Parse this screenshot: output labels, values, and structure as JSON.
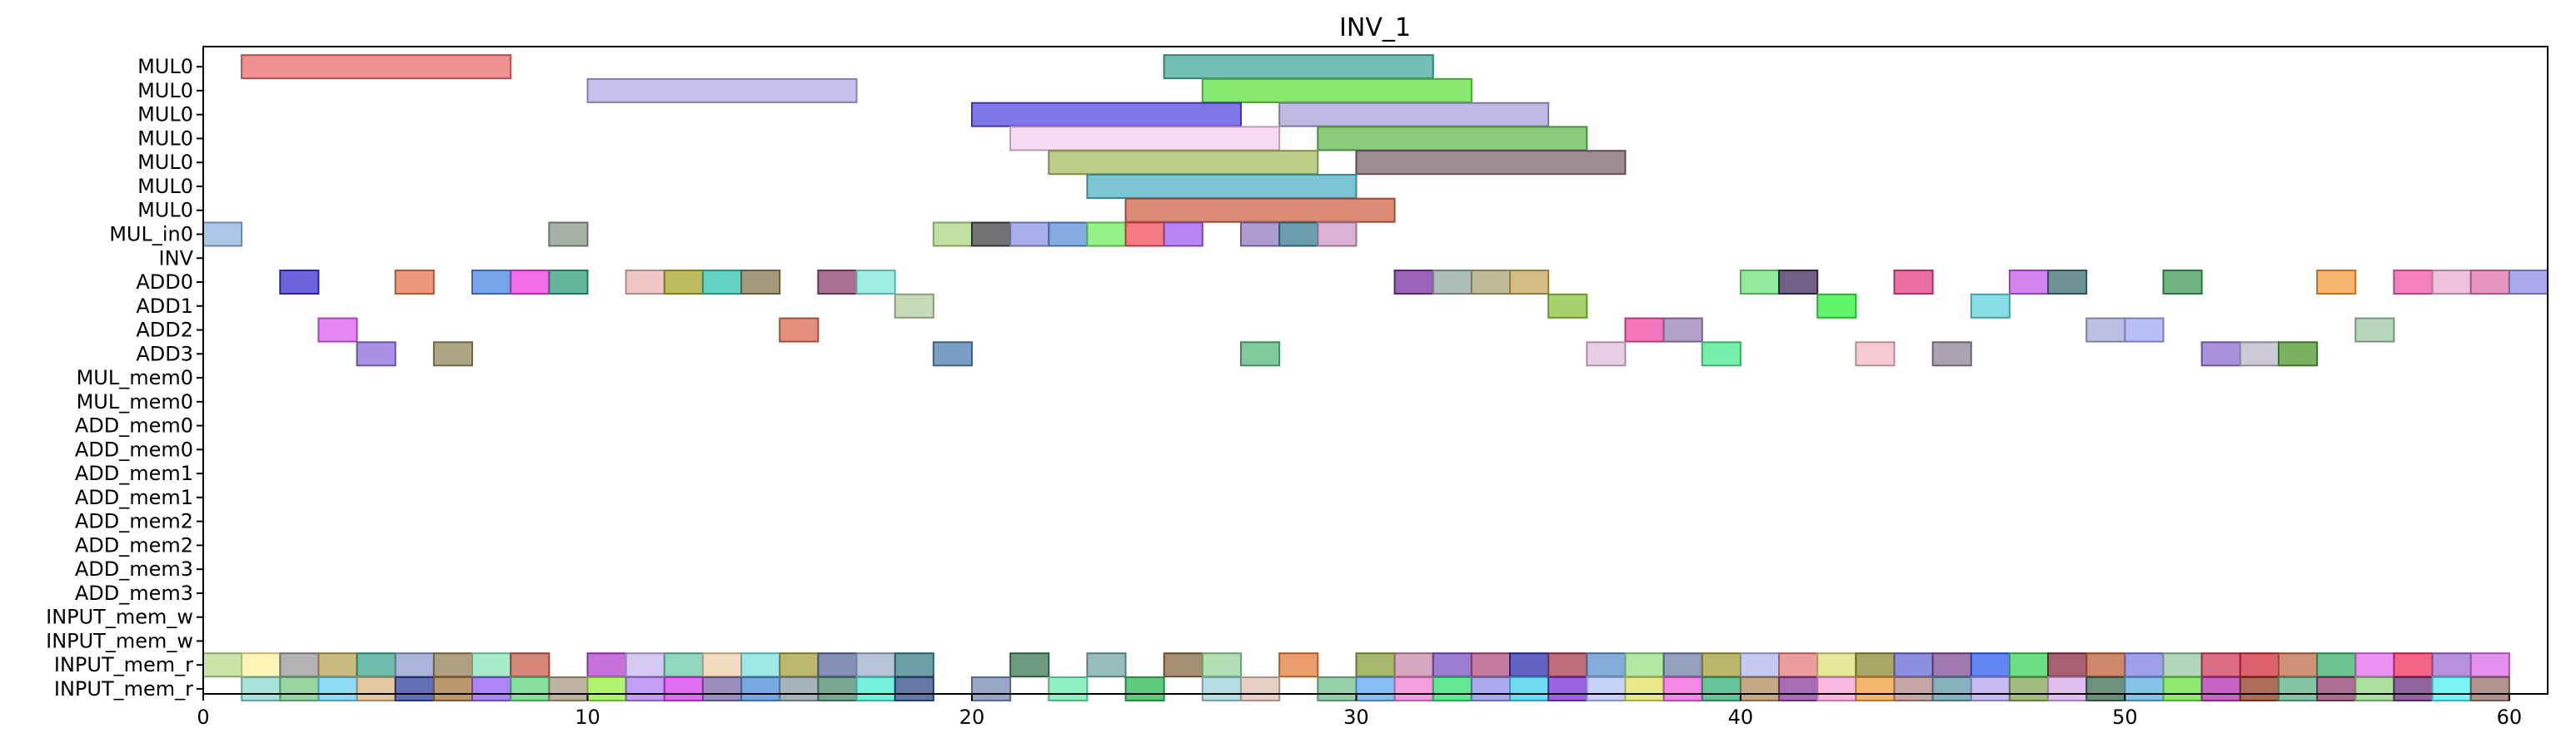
{
  "chart_data": {
    "type": "gantt",
    "title": "INV_1",
    "xlabel": "",
    "ylabel": "",
    "xlim": [
      0,
      61
    ],
    "xticks": [
      0,
      10,
      20,
      30,
      40,
      50,
      60
    ],
    "grid": false,
    "rows": [
      "MUL0",
      "MUL0",
      "MUL0",
      "MUL0",
      "MUL0",
      "MUL0",
      "MUL0",
      "MUL_in0",
      "INV",
      "ADD0",
      "ADD1",
      "ADD2",
      "ADD3",
      "MUL_mem0",
      "MUL_mem0",
      "ADD_mem0",
      "ADD_mem0",
      "ADD_mem1",
      "ADD_mem1",
      "ADD_mem2",
      "ADD_mem2",
      "ADD_mem3",
      "ADD_mem3",
      "INPUT_mem_w",
      "INPUT_mem_w",
      "INPUT_mem_r",
      "INPUT_mem_r"
    ],
    "tasks": [
      {
        "row": 0,
        "start": 1,
        "end": 8,
        "color": "#ec6b6b"
      },
      {
        "row": 0,
        "start": 25,
        "end": 32,
        "color": "#45a99a"
      },
      {
        "row": 1,
        "start": 10,
        "end": 17,
        "color": "#b7a9e6"
      },
      {
        "row": 1,
        "start": 26,
        "end": 33,
        "color": "#5fe240"
      },
      {
        "row": 2,
        "start": 20,
        "end": 27,
        "color": "#5447de"
      },
      {
        "row": 2,
        "start": 28,
        "end": 35,
        "color": "#a7a2d8"
      },
      {
        "row": 3,
        "start": 21,
        "end": 28,
        "color": "#f6cfee"
      },
      {
        "row": 3,
        "start": 29,
        "end": 36,
        "color": "#63bb52"
      },
      {
        "row": 4,
        "start": 22,
        "end": 29,
        "color": "#a8be62"
      },
      {
        "row": 4,
        "start": 30,
        "end": 37,
        "color": "#7f6470"
      },
      {
        "row": 5,
        "start": 23,
        "end": 30,
        "color": "#4fb2c7"
      },
      {
        "row": 6,
        "start": 24,
        "end": 31,
        "color": "#cf6348"
      },
      {
        "row": 7,
        "start": 0,
        "end": 1,
        "color": "#92b3e2"
      },
      {
        "row": 7,
        "start": 9,
        "end": 10,
        "color": "#8b9a8b"
      },
      {
        "row": 7,
        "start": 19,
        "end": 20,
        "color": "#acd784"
      },
      {
        "row": 7,
        "start": 20,
        "end": 21,
        "color": "#414141"
      },
      {
        "row": 7,
        "start": 21,
        "end": 22,
        "color": "#8e93e6"
      },
      {
        "row": 7,
        "start": 22,
        "end": 23,
        "color": "#5c8fd8"
      },
      {
        "row": 7,
        "start": 23,
        "end": 24,
        "color": "#6fef5e"
      },
      {
        "row": 7,
        "start": 24,
        "end": 25,
        "color": "#f34f5a"
      },
      {
        "row": 7,
        "start": 25,
        "end": 26,
        "color": "#a05df0"
      },
      {
        "row": 7,
        "start": 27,
        "end": 28,
        "color": "#9279c2"
      },
      {
        "row": 7,
        "start": 28,
        "end": 29,
        "color": "#3a7f94"
      },
      {
        "row": 7,
        "start": 29,
        "end": 30,
        "color": "#cf97c6"
      },
      {
        "row": 9,
        "start": 2,
        "end": 3,
        "color": "#3a2dd0"
      },
      {
        "row": 9,
        "start": 5,
        "end": 6,
        "color": "#e47552"
      },
      {
        "row": 9,
        "start": 7,
        "end": 8,
        "color": "#4a86e0"
      },
      {
        "row": 9,
        "start": 8,
        "end": 9,
        "color": "#f03ce0"
      },
      {
        "row": 9,
        "start": 9,
        "end": 10,
        "color": "#2f9e7a"
      },
      {
        "row": 9,
        "start": 11,
        "end": 12,
        "color": "#eab4b4"
      },
      {
        "row": 9,
        "start": 12,
        "end": 13,
        "color": "#a9a52a"
      },
      {
        "row": 9,
        "start": 13,
        "end": 14,
        "color": "#2fc2b0"
      },
      {
        "row": 9,
        "start": 14,
        "end": 15,
        "color": "#857a52"
      },
      {
        "row": 9,
        "start": 16,
        "end": 17,
        "color": "#8c3f6f"
      },
      {
        "row": 9,
        "start": 17,
        "end": 18,
        "color": "#7ee8dd"
      },
      {
        "row": 9,
        "start": 31,
        "end": 32,
        "color": "#7a2ea0"
      },
      {
        "row": 9,
        "start": 32,
        "end": 33,
        "color": "#93a8a4"
      },
      {
        "row": 9,
        "start": 33,
        "end": 34,
        "color": "#a7a673"
      },
      {
        "row": 9,
        "start": 34,
        "end": 35,
        "color": "#c6a55c"
      },
      {
        "row": 9,
        "start": 40,
        "end": 41,
        "color": "#6ee07a"
      },
      {
        "row": 9,
        "start": 41,
        "end": 42,
        "color": "#3f2d5c"
      },
      {
        "row": 9,
        "start": 44,
        "end": 45,
        "color": "#e33f82"
      },
      {
        "row": 9,
        "start": 47,
        "end": 48,
        "color": "#c45bea"
      },
      {
        "row": 9,
        "start": 48,
        "end": 49,
        "color": "#3f6f70"
      },
      {
        "row": 9,
        "start": 51,
        "end": 52,
        "color": "#3f9a55"
      },
      {
        "row": 9,
        "start": 55,
        "end": 56,
        "color": "#f49a3c"
      },
      {
        "row": 9,
        "start": 57,
        "end": 58,
        "color": "#f058a8"
      },
      {
        "row": 9,
        "start": 58,
        "end": 59,
        "color": "#e8aed0"
      },
      {
        "row": 9,
        "start": 59,
        "end": 60,
        "color": "#df72a8"
      },
      {
        "row": 9,
        "start": 60,
        "end": 61,
        "color": "#8e8fe6"
      },
      {
        "row": 10,
        "start": 18,
        "end": 19,
        "color": "#b6cfa0"
      },
      {
        "row": 10,
        "start": 35,
        "end": 36,
        "color": "#8ac43f"
      },
      {
        "row": 10,
        "start": 42,
        "end": 43,
        "color": "#2ef03a"
      },
      {
        "row": 10,
        "start": 46,
        "end": 47,
        "color": "#5fd3df"
      },
      {
        "row": 11,
        "start": 3,
        "end": 4,
        "color": "#e05cf0"
      },
      {
        "row": 11,
        "start": 15,
        "end": 16,
        "color": "#d96950"
      },
      {
        "row": 11,
        "start": 37,
        "end": 38,
        "color": "#f04aa8"
      },
      {
        "row": 11,
        "start": 38,
        "end": 39,
        "color": "#9a82b8"
      },
      {
        "row": 11,
        "start": 49,
        "end": 50,
        "color": "#a8a9dc"
      },
      {
        "row": 11,
        "start": 50,
        "end": 51,
        "color": "#a3a8f5"
      },
      {
        "row": 11,
        "start": 56,
        "end": 57,
        "color": "#9cc8a0"
      },
      {
        "row": 12,
        "start": 4,
        "end": 5,
        "color": "#8c6edc"
      },
      {
        "row": 12,
        "start": 6,
        "end": 7,
        "color": "#8f8a58"
      },
      {
        "row": 12,
        "start": 19,
        "end": 20,
        "color": "#4f7fb0"
      },
      {
        "row": 12,
        "start": 27,
        "end": 28,
        "color": "#56b87a"
      },
      {
        "row": 12,
        "start": 36,
        "end": 37,
        "color": "#e2bde0"
      },
      {
        "row": 12,
        "start": 39,
        "end": 40,
        "color": "#4ae88f"
      },
      {
        "row": 12,
        "start": 43,
        "end": 44,
        "color": "#f6b9c5"
      },
      {
        "row": 12,
        "start": 45,
        "end": 46,
        "color": "#8f8494"
      },
      {
        "row": 12,
        "start": 52,
        "end": 53,
        "color": "#8e6cd0"
      },
      {
        "row": 12,
        "start": 53,
        "end": 54,
        "color": "#bab8c8"
      },
      {
        "row": 12,
        "start": 54,
        "end": 55,
        "color": "#4c9a2d"
      },
      {
        "row": 25,
        "start": 0,
        "end": 1,
        "color": "#b7dc8c"
      },
      {
        "row": 25,
        "start": 1,
        "end": 2,
        "color": "#fff3a0"
      },
      {
        "row": 25,
        "start": 2,
        "end": 3,
        "color": "#9a9a9a"
      },
      {
        "row": 25,
        "start": 3,
        "end": 4,
        "color": "#b9a455"
      },
      {
        "row": 25,
        "start": 4,
        "end": 5,
        "color": "#3fa58e"
      },
      {
        "row": 25,
        "start": 5,
        "end": 6,
        "color": "#8c9dcc"
      },
      {
        "row": 25,
        "start": 6,
        "end": 7,
        "color": "#967d55"
      },
      {
        "row": 25,
        "start": 7,
        "end": 8,
        "color": "#8ae6b8"
      },
      {
        "row": 25,
        "start": 8,
        "end": 9,
        "color": "#c85c4c"
      },
      {
        "row": 25,
        "start": 10,
        "end": 11,
        "color": "#b640d0"
      },
      {
        "row": 25,
        "start": 11,
        "end": 12,
        "color": "#c5b8ef"
      },
      {
        "row": 25,
        "start": 12,
        "end": 13,
        "color": "#6cc8a8"
      },
      {
        "row": 25,
        "start": 13,
        "end": 14,
        "color": "#edcfa8"
      },
      {
        "row": 25,
        "start": 14,
        "end": 15,
        "color": "#80e0dc"
      },
      {
        "row": 25,
        "start": 15,
        "end": 16,
        "color": "#a5a040"
      },
      {
        "row": 25,
        "start": 16,
        "end": 17,
        "color": "#5e6a9c"
      },
      {
        "row": 25,
        "start": 17,
        "end": 18,
        "color": "#9fb1cf"
      },
      {
        "row": 25,
        "start": 18,
        "end": 19,
        "color": "#3a8088"
      },
      {
        "row": 25,
        "start": 21,
        "end": 22,
        "color": "#3d7a54"
      },
      {
        "row": 25,
        "start": 23,
        "end": 24,
        "color": "#74a6a6"
      },
      {
        "row": 25,
        "start": 25,
        "end": 26,
        "color": "#8a6a44"
      },
      {
        "row": 25,
        "start": 26,
        "end": 27,
        "color": "#98d49a"
      },
      {
        "row": 25,
        "start": 28,
        "end": 29,
        "color": "#e47c3a"
      },
      {
        "row": 25,
        "start": 30,
        "end": 31,
        "color": "#8aa03c"
      },
      {
        "row": 25,
        "start": 31,
        "end": 32,
        "color": "#c88aa8"
      },
      {
        "row": 25,
        "start": 32,
        "end": 33,
        "color": "#7b52c2"
      },
      {
        "row": 25,
        "start": 33,
        "end": 34,
        "color": "#b04f7c"
      },
      {
        "row": 25,
        "start": 34,
        "end": 35,
        "color": "#2e2eae"
      },
      {
        "row": 25,
        "start": 35,
        "end": 36,
        "color": "#a83c4e"
      },
      {
        "row": 25,
        "start": 36,
        "end": 37,
        "color": "#5b8fcc"
      },
      {
        "row": 25,
        "start": 37,
        "end": 38,
        "color": "#96e086"
      },
      {
        "row": 25,
        "start": 38,
        "end": 39,
        "color": "#7080a8"
      },
      {
        "row": 25,
        "start": 39,
        "end": 40,
        "color": "#a4a038"
      },
      {
        "row": 25,
        "start": 40,
        "end": 41,
        "color": "#b0b8ec"
      },
      {
        "row": 25,
        "start": 41,
        "end": 42,
        "color": "#e87c7c"
      },
      {
        "row": 25,
        "start": 42,
        "end": 43,
        "color": "#e0e07a"
      },
      {
        "row": 25,
        "start": 43,
        "end": 44,
        "color": "#8f8c34"
      },
      {
        "row": 25,
        "start": 44,
        "end": 45,
        "color": "#6a6ad8"
      },
      {
        "row": 25,
        "start": 45,
        "end": 46,
        "color": "#804c94"
      },
      {
        "row": 25,
        "start": 46,
        "end": 47,
        "color": "#2f5ef0"
      },
      {
        "row": 25,
        "start": 47,
        "end": 48,
        "color": "#3cd35a"
      },
      {
        "row": 25,
        "start": 48,
        "end": 49,
        "color": "#8a2c44"
      },
      {
        "row": 25,
        "start": 49,
        "end": 50,
        "color": "#c0603c"
      },
      {
        "row": 25,
        "start": 50,
        "end": 51,
        "color": "#8080e0"
      },
      {
        "row": 25,
        "start": 51,
        "end": 52,
        "color": "#9ac8a0"
      },
      {
        "row": 25,
        "start": 52,
        "end": 53,
        "color": "#d03c5c"
      },
      {
        "row": 25,
        "start": 53,
        "end": 54,
        "color": "#d02c3c"
      },
      {
        "row": 25,
        "start": 54,
        "end": 55,
        "color": "#c06c4c"
      },
      {
        "row": 25,
        "start": 55,
        "end": 56,
        "color": "#3cb06c"
      },
      {
        "row": 25,
        "start": 56,
        "end": 57,
        "color": "#e86cf0"
      },
      {
        "row": 25,
        "start": 57,
        "end": 58,
        "color": "#f0305c"
      },
      {
        "row": 25,
        "start": 58,
        "end": 59,
        "color": "#a06cd0"
      },
      {
        "row": 25,
        "start": 59,
        "end": 60,
        "color": "#d86ce8"
      },
      {
        "row": 26,
        "start": 1,
        "end": 2,
        "color": "#8ad8d0"
      },
      {
        "row": 26,
        "start": 2,
        "end": 3,
        "color": "#74c884"
      },
      {
        "row": 26,
        "start": 3,
        "end": 4,
        "color": "#68d2f0"
      },
      {
        "row": 26,
        "start": 4,
        "end": 5,
        "color": "#d9b480"
      },
      {
        "row": 26,
        "start": 5,
        "end": 6,
        "color": "#30409c"
      },
      {
        "row": 26,
        "start": 6,
        "end": 7,
        "color": "#a4743c"
      },
      {
        "row": 26,
        "start": 7,
        "end": 8,
        "color": "#8f5ef0"
      },
      {
        "row": 26,
        "start": 8,
        "end": 9,
        "color": "#5cd47c"
      },
      {
        "row": 26,
        "start": 9,
        "end": 10,
        "color": "#a89a80"
      },
      {
        "row": 26,
        "start": 10,
        "end": 11,
        "color": "#94f040"
      },
      {
        "row": 26,
        "start": 11,
        "end": 12,
        "color": "#b07cf0"
      },
      {
        "row": 26,
        "start": 12,
        "end": 13,
        "color": "#d43cf0"
      },
      {
        "row": 26,
        "start": 13,
        "end": 14,
        "color": "#7a6aa8"
      },
      {
        "row": 26,
        "start": 14,
        "end": 15,
        "color": "#4c8cd8"
      },
      {
        "row": 26,
        "start": 15,
        "end": 16,
        "color": "#8a9aa4"
      },
      {
        "row": 26,
        "start": 16,
        "end": 17,
        "color": "#4c8c70"
      },
      {
        "row": 26,
        "start": 17,
        "end": 18,
        "color": "#48ecd0"
      },
      {
        "row": 26,
        "start": 18,
        "end": 19,
        "color": "#304c88"
      },
      {
        "row": 26,
        "start": 20,
        "end": 21,
        "color": "#7488b0"
      },
      {
        "row": 26,
        "start": 22,
        "end": 23,
        "color": "#6cecb0"
      },
      {
        "row": 26,
        "start": 24,
        "end": 25,
        "color": "#2cb854"
      },
      {
        "row": 26,
        "start": 26,
        "end": 27,
        "color": "#9cd4dc"
      },
      {
        "row": 26,
        "start": 27,
        "end": 28,
        "color": "#e0c0b0"
      },
      {
        "row": 26,
        "start": 29,
        "end": 30,
        "color": "#74c08c"
      },
      {
        "row": 26,
        "start": 30,
        "end": 31,
        "color": "#60a8f0"
      },
      {
        "row": 26,
        "start": 31,
        "end": 32,
        "color": "#f07cd4"
      },
      {
        "row": 26,
        "start": 32,
        "end": 33,
        "color": "#30e06c"
      },
      {
        "row": 26,
        "start": 33,
        "end": 34,
        "color": "#8c8ce8"
      },
      {
        "row": 26,
        "start": 34,
        "end": 35,
        "color": "#40d0f0"
      },
      {
        "row": 26,
        "start": 35,
        "end": 36,
        "color": "#7c30d8"
      },
      {
        "row": 26,
        "start": 36,
        "end": 37,
        "color": "#b0c4f4"
      },
      {
        "row": 26,
        "start": 37,
        "end": 38,
        "color": "#e0e060"
      },
      {
        "row": 26,
        "start": 38,
        "end": 39,
        "color": "#f060e0"
      },
      {
        "row": 26,
        "start": 39,
        "end": 40,
        "color": "#38b078"
      },
      {
        "row": 26,
        "start": 40,
        "end": 41,
        "color": "#b08c5c"
      },
      {
        "row": 26,
        "start": 41,
        "end": 42,
        "color": "#8c3ca0"
      },
      {
        "row": 26,
        "start": 42,
        "end": 43,
        "color": "#f8a0d8"
      },
      {
        "row": 26,
        "start": 43,
        "end": 44,
        "color": "#f09c3c"
      },
      {
        "row": 26,
        "start": 44,
        "end": 45,
        "color": "#b48888"
      },
      {
        "row": 26,
        "start": 45,
        "end": 46,
        "color": "#5c98a8"
      },
      {
        "row": 26,
        "start": 46,
        "end": 47,
        "color": "#b4a4ec"
      },
      {
        "row": 26,
        "start": 47,
        "end": 48,
        "color": "#84a450"
      },
      {
        "row": 26,
        "start": 48,
        "end": 49,
        "color": "#d8a8ec"
      },
      {
        "row": 26,
        "start": 49,
        "end": 50,
        "color": "#3c6c50"
      },
      {
        "row": 26,
        "start": 50,
        "end": 51,
        "color": "#5cb0e0"
      },
      {
        "row": 26,
        "start": 51,
        "end": 52,
        "color": "#6ce040"
      },
      {
        "row": 26,
        "start": 52,
        "end": 53,
        "color": "#b430b0"
      },
      {
        "row": 26,
        "start": 53,
        "end": 54,
        "color": "#903c20"
      },
      {
        "row": 26,
        "start": 54,
        "end": 55,
        "color": "#5cb088"
      },
      {
        "row": 26,
        "start": 55,
        "end": 56,
        "color": "#903c70"
      },
      {
        "row": 26,
        "start": 56,
        "end": 57,
        "color": "#90d480"
      },
      {
        "row": 26,
        "start": 57,
        "end": 58,
        "color": "#703080"
      },
      {
        "row": 26,
        "start": 58,
        "end": 59,
        "color": "#50f0f0"
      },
      {
        "row": 26,
        "start": 59,
        "end": 60,
        "color": "#987068"
      }
    ]
  }
}
